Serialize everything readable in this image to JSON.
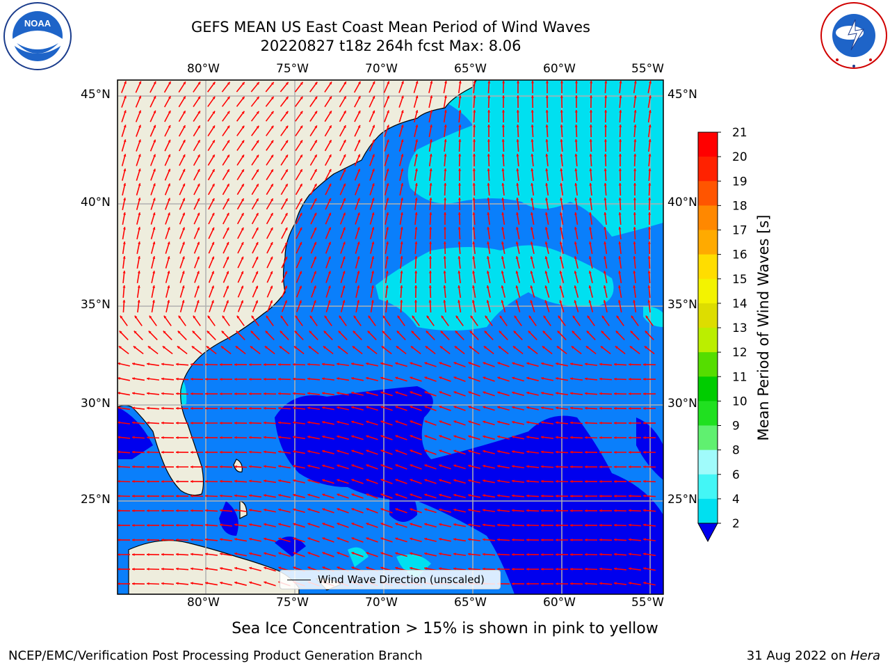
{
  "titles": {
    "line1": "GEFS MEAN US East Coast Mean Period of Wind Waves",
    "line2": "20220827 t18z 264h fcst   Max: 8.06"
  },
  "map": {
    "lon_labels": [
      "80°W",
      "75°W",
      "70°W",
      "65°W",
      "60°W",
      "55°W"
    ],
    "lat_labels": [
      "45°N",
      "40°N",
      "35°N",
      "30°N",
      "25°N"
    ],
    "extent": {
      "lon": [
        -85,
        -54.5
      ],
      "lat": [
        20.5,
        46
      ]
    },
    "colors": {
      "land": "#eeeddd",
      "grid": "#b0b0b0",
      "arrows": "#ff0000"
    },
    "legend_label": "Wind Wave Direction (unscaled)"
  },
  "colorbar": {
    "label": "Mean Period of Wind Waves [s]",
    "levels": [
      {
        "value": "2",
        "color": "#0a7ffb"
      },
      {
        "value": "4",
        "color": "#00e0f0"
      },
      {
        "value": "6",
        "color": "#43f6f6"
      },
      {
        "value": "8",
        "color": "#a0fbfb"
      },
      {
        "value": "9",
        "color": "#60f070"
      },
      {
        "value": "10",
        "color": "#20e020"
      },
      {
        "value": "11",
        "color": "#00cc00"
      },
      {
        "value": "12",
        "color": "#55dd00"
      },
      {
        "value": "13",
        "color": "#bbee00"
      },
      {
        "value": "14",
        "color": "#dddd00"
      },
      {
        "value": "15",
        "color": "#f3f300"
      },
      {
        "value": "16",
        "color": "#ffdd00"
      },
      {
        "value": "17",
        "color": "#ffaa00"
      },
      {
        "value": "18",
        "color": "#ff8800"
      },
      {
        "value": "19",
        "color": "#ff5500"
      },
      {
        "value": "20",
        "color": "#ff2200"
      },
      {
        "value": "21",
        "color": "#ff0000"
      }
    ],
    "under_color": "#0000ee"
  },
  "notes": {
    "ice": "Sea Ice Concentration > 15% is shown in pink to yellow",
    "footer_left": "NCEP/EMC/Verification Post Processing Product Generation Branch",
    "footer_date": "31 Aug 2022 on ",
    "footer_machine": "Hera"
  },
  "logos": {
    "noaa": "NOAA",
    "nws": "NATIONAL WEATHER SERVICE"
  }
}
